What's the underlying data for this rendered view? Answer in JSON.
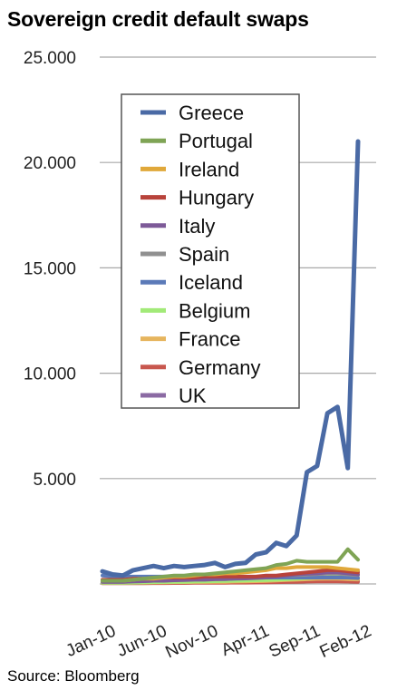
{
  "title": "Sovereign credit default swaps",
  "source": "Source: Bloomberg",
  "chart_data": {
    "type": "line",
    "title": "Sovereign credit default swaps",
    "xlabel": "",
    "ylabel": "",
    "ylim": [
      0,
      25000
    ],
    "yticks": [
      0,
      5000,
      10000,
      15000,
      20000,
      25000
    ],
    "ytick_labels": [
      "",
      "5.000",
      "10.000",
      "15.000",
      "20.000",
      "25.000"
    ],
    "x": [
      "Jan-10",
      "Feb-10",
      "Mar-10",
      "Apr-10",
      "May-10",
      "Jun-10",
      "Jul-10",
      "Aug-10",
      "Sep-10",
      "Oct-10",
      "Nov-10",
      "Dec-10",
      "Jan-11",
      "Feb-11",
      "Mar-11",
      "Apr-11",
      "May-11",
      "Jun-11",
      "Jul-11",
      "Aug-11",
      "Sep-11",
      "Oct-11",
      "Nov-11",
      "Dec-11",
      "Jan-12",
      "Feb-12"
    ],
    "xtick_labels": [
      "Jan-10",
      "Jun-10",
      "Nov-10",
      "Apr-11",
      "Sep-11",
      "Feb-12"
    ],
    "xtick_indices": [
      0,
      5,
      10,
      15,
      20,
      25
    ],
    "grid": true,
    "legend_position": "top-left",
    "series": [
      {
        "name": "Greece",
        "color": "#4a6aa5",
        "values": [
          600,
          450,
          400,
          650,
          750,
          850,
          750,
          850,
          800,
          850,
          900,
          1000,
          800,
          950,
          1000,
          1400,
          1500,
          1950,
          1800,
          2300,
          5300,
          5600,
          8100,
          8400,
          5500,
          21000
        ]
      },
      {
        "name": "Portugal",
        "color": "#7fa455",
        "values": [
          150,
          150,
          150,
          200,
          250,
          300,
          350,
          400,
          400,
          450,
          450,
          500,
          550,
          600,
          650,
          700,
          750,
          900,
          950,
          1100,
          1050,
          1050,
          1050,
          1050,
          1650,
          1150
        ]
      },
      {
        "name": "Ireland",
        "color": "#e0a83a",
        "values": [
          150,
          150,
          150,
          200,
          250,
          250,
          300,
          350,
          350,
          400,
          450,
          450,
          500,
          500,
          550,
          600,
          650,
          750,
          750,
          800,
          800,
          800,
          800,
          750,
          700,
          650
        ]
      },
      {
        "name": "Hungary",
        "color": "#b8433b",
        "values": [
          200,
          200,
          200,
          250,
          250,
          300,
          300,
          300,
          300,
          300,
          350,
          350,
          350,
          350,
          350,
          350,
          400,
          400,
          450,
          500,
          550,
          600,
          650,
          650,
          600,
          550
        ]
      },
      {
        "name": "Italy",
        "color": "#7d5a98",
        "values": [
          100,
          100,
          100,
          120,
          130,
          150,
          150,
          170,
          180,
          200,
          200,
          220,
          230,
          250,
          260,
          280,
          300,
          350,
          400,
          450,
          480,
          500,
          550,
          550,
          500,
          450
        ]
      },
      {
        "name": "Spain",
        "color": "#909090",
        "values": [
          100,
          100,
          100,
          120,
          130,
          150,
          160,
          180,
          200,
          220,
          240,
          250,
          260,
          280,
          300,
          320,
          340,
          370,
          400,
          420,
          440,
          460,
          480,
          480,
          450,
          420
        ]
      },
      {
        "name": "Iceland",
        "color": "#5b7ab8",
        "values": [
          400,
          350,
          350,
          350,
          350,
          350,
          350,
          350,
          350,
          350,
          300,
          300,
          300,
          300,
          300,
          300,
          300,
          300,
          300,
          300,
          300,
          300,
          300,
          300,
          300,
          280
        ]
      },
      {
        "name": "Belgium",
        "color": "#a2ea78",
        "values": [
          50,
          50,
          50,
          60,
          70,
          80,
          90,
          100,
          100,
          110,
          120,
          130,
          140,
          150,
          160,
          170,
          180,
          200,
          220,
          250,
          280,
          300,
          320,
          330,
          300,
          280
        ]
      },
      {
        "name": "France",
        "color": "#e6b55e",
        "values": [
          50,
          50,
          50,
          60,
          60,
          70,
          70,
          80,
          80,
          90,
          90,
          100,
          100,
          110,
          120,
          130,
          140,
          160,
          180,
          200,
          220,
          240,
          250,
          250,
          230,
          210
        ]
      },
      {
        "name": "Germany",
        "color": "#c8574e",
        "values": [
          30,
          30,
          30,
          35,
          35,
          40,
          40,
          45,
          45,
          50,
          50,
          55,
          55,
          60,
          60,
          65,
          70,
          80,
          90,
          100,
          110,
          120,
          120,
          120,
          110,
          100
        ]
      },
      {
        "name": "UK",
        "color": "#8b6aa3",
        "values": [
          70,
          70,
          70,
          75,
          75,
          80,
          80,
          85,
          85,
          90,
          90,
          95,
          95,
          100,
          100,
          105,
          110,
          120,
          130,
          140,
          150,
          160,
          160,
          160,
          150,
          140
        ]
      }
    ]
  }
}
